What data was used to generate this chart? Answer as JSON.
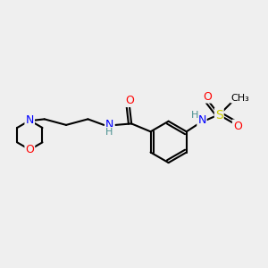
{
  "bg_color": "#efefef",
  "atom_colors": {
    "C": "#000000",
    "N": "#0000ff",
    "O": "#ff0000",
    "S": "#cccc00",
    "H": "#4a9090"
  },
  "bond_color": "#000000",
  "bond_width": 1.5
}
